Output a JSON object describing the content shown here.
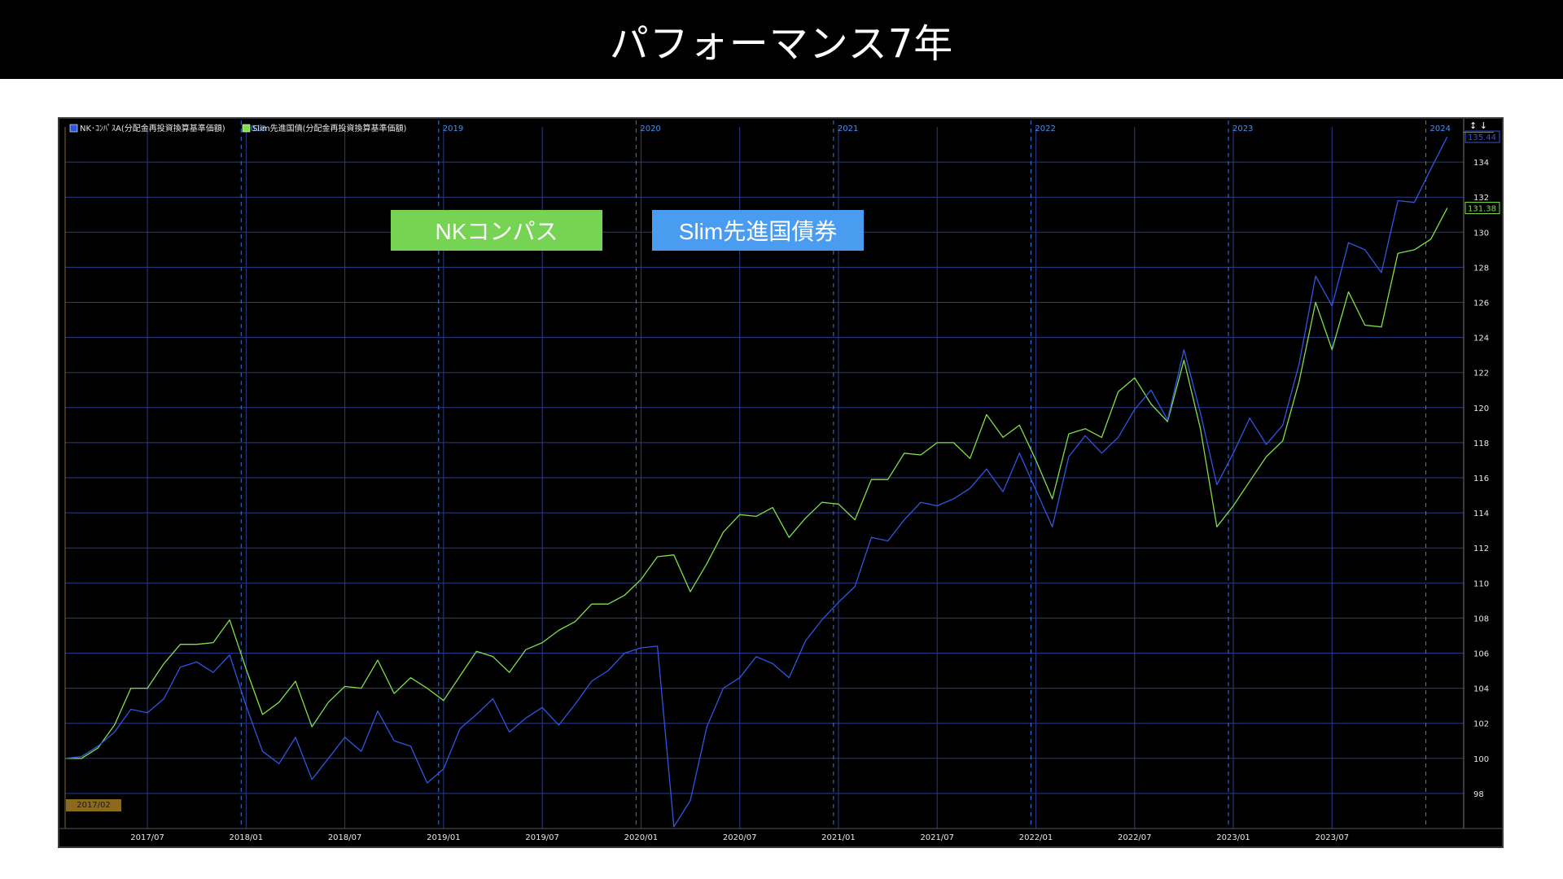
{
  "page": {
    "title": "パフォーマンス7年"
  },
  "labels": {
    "nk": {
      "text": "NKコンパス",
      "bg": "#77d353"
    },
    "slim": {
      "text": "Slim先進国債券",
      "bg": "#4a9cf0"
    }
  },
  "badge": {
    "start_text": "2017/02",
    "bg": "#8a6a1c"
  },
  "scroll_icon": "up-down-arrows-icon",
  "chart_data": {
    "type": "line",
    "grid": true,
    "legend_position": "top-left",
    "y_range": [
      96,
      136
    ],
    "y_ticks": [
      98,
      100,
      102,
      104,
      106,
      108,
      110,
      112,
      114,
      116,
      118,
      120,
      122,
      124,
      126,
      128,
      130,
      132,
      134
    ],
    "x_range": [
      0,
      85
    ],
    "x_tick_labels": [
      {
        "m": 5,
        "label": "2017/07"
      },
      {
        "m": 11,
        "label": "2018/01"
      },
      {
        "m": 17,
        "label": "2018/07"
      },
      {
        "m": 23,
        "label": "2019/01"
      },
      {
        "m": 29,
        "label": "2019/07"
      },
      {
        "m": 35,
        "label": "2020/01"
      },
      {
        "m": 41,
        "label": "2020/07"
      },
      {
        "m": 47,
        "label": "2021/01"
      },
      {
        "m": 53,
        "label": "2021/07"
      },
      {
        "m": 59,
        "label": "2022/01"
      },
      {
        "m": 65,
        "label": "2022/07"
      },
      {
        "m": 71,
        "label": "2023/01"
      },
      {
        "m": 77,
        "label": "2023/07"
      }
    ],
    "year_markers": [
      {
        "m": 10.7,
        "label": "2018"
      },
      {
        "m": 22.7,
        "label": "2019"
      },
      {
        "m": 34.7,
        "label": "2020"
      },
      {
        "m": 46.7,
        "label": "2021"
      },
      {
        "m": 58.7,
        "label": "2022"
      },
      {
        "m": 70.7,
        "label": "2023"
      },
      {
        "m": 82.7,
        "label": "2024"
      }
    ],
    "series": [
      {
        "name": "NK･ｺﾝﾊﾟｽA(分配金再投資換算基準価額)",
        "color": "#2f56e0",
        "last_value_label": "135.44",
        "values": [
          100.0,
          100.1,
          100.7,
          101.5,
          102.8,
          102.6,
          103.4,
          105.2,
          105.5,
          104.9,
          105.9,
          103.0,
          100.4,
          99.7,
          101.2,
          98.8,
          100.0,
          101.2,
          100.4,
          102.7,
          101.0,
          100.7,
          98.6,
          99.4,
          101.7,
          102.5,
          103.4,
          101.5,
          102.3,
          102.9,
          101.9,
          103.1,
          104.4,
          105.0,
          106.0,
          106.3,
          106.4,
          96.1,
          97.6,
          101.8,
          104.0,
          104.6,
          105.8,
          105.4,
          104.6,
          106.7,
          107.9,
          108.9,
          109.8,
          112.6,
          112.4,
          113.6,
          114.6,
          114.4,
          114.8,
          115.4,
          116.5,
          115.2,
          117.4,
          115.3,
          113.2,
          117.2,
          118.4,
          117.4,
          118.3,
          119.9,
          121.0,
          119.3,
          123.3,
          119.7,
          115.6,
          117.4,
          119.4,
          117.9,
          119.0,
          122.5,
          127.5,
          125.8,
          129.4,
          129.0,
          127.7,
          131.8,
          131.7,
          133.6,
          135.44
        ]
      },
      {
        "name": "Slim先進国債(分配金再投資換算基準価額)",
        "color": "#7fe04a",
        "last_value_label": "131.38",
        "values": [
          100.0,
          100.0,
          100.6,
          101.9,
          104.0,
          104.0,
          105.4,
          106.5,
          106.5,
          106.6,
          107.9,
          105.1,
          102.5,
          103.2,
          104.4,
          101.8,
          103.2,
          104.1,
          104.0,
          105.6,
          103.7,
          104.6,
          104.0,
          103.3,
          104.7,
          106.1,
          105.8,
          104.9,
          106.2,
          106.6,
          107.3,
          107.8,
          108.8,
          108.8,
          109.3,
          110.2,
          111.5,
          111.6,
          109.5,
          111.1,
          112.9,
          113.9,
          113.8,
          114.3,
          112.6,
          113.7,
          114.6,
          114.5,
          113.6,
          115.9,
          115.9,
          117.4,
          117.3,
          118.0,
          118.0,
          117.1,
          119.6,
          118.3,
          119.0,
          117.0,
          114.8,
          118.5,
          118.8,
          118.3,
          120.9,
          121.7,
          120.2,
          119.2,
          122.7,
          118.8,
          113.2,
          114.4,
          115.8,
          117.2,
          118.1,
          121.5,
          126.0,
          123.3,
          126.6,
          124.7,
          124.6,
          128.8,
          129.0,
          129.6,
          131.38
        ]
      }
    ]
  }
}
